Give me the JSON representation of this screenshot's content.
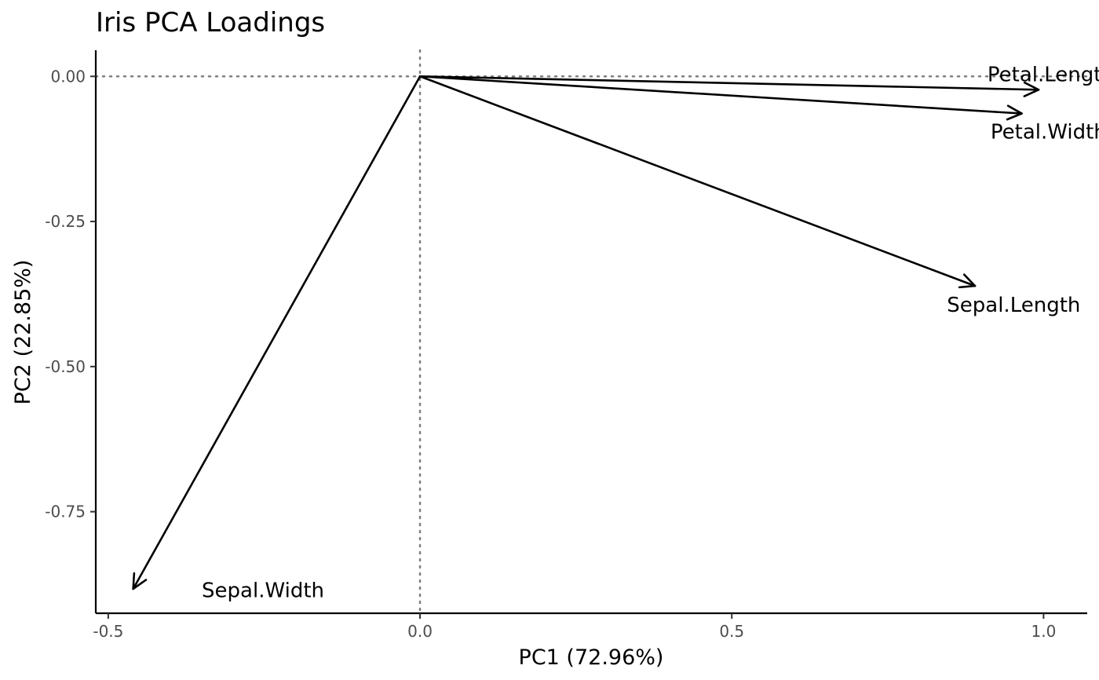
{
  "chart_data": {
    "type": "scatter",
    "subtype": "pca-loadings-biplot",
    "title": "Iris PCA Loadings",
    "xlabel": "PC1 (72.96%)",
    "ylabel": "PC2 (22.85%)",
    "xlim": [
      -0.52,
      1.07
    ],
    "ylim": [
      -0.925,
      0.045
    ],
    "x_ticks": [
      -0.5,
      0.0,
      0.5,
      1.0
    ],
    "x_tick_labels": [
      "-0.5",
      "0.0",
      "0.5",
      "1.0"
    ],
    "y_ticks": [
      0.0,
      -0.25,
      -0.5,
      -0.75
    ],
    "y_tick_labels": [
      "0.00",
      "-0.25",
      "-0.50",
      "-0.75"
    ],
    "reference_lines": {
      "x": 0,
      "y": 0
    },
    "grid": false,
    "series": [
      {
        "name": "Sepal.Length",
        "x": [
          0,
          0.89
        ],
        "y": [
          0,
          -0.361
        ]
      },
      {
        "name": "Sepal.Width",
        "x": [
          0,
          -0.46
        ],
        "y": [
          0,
          -0.883
        ]
      },
      {
        "name": "Petal.Length",
        "x": [
          0,
          0.992
        ],
        "y": [
          0,
          -0.023
        ]
      },
      {
        "name": "Petal.Width",
        "x": [
          0,
          0.965
        ],
        "y": [
          0,
          -0.064
        ]
      }
    ],
    "vector_labels": [
      {
        "text": "Petal.Length",
        "x": 0.91,
        "y": 0.004
      },
      {
        "text": "Petal.Width",
        "x": 0.915,
        "y": -0.095
      },
      {
        "text": "Sepal.Length",
        "x": 0.845,
        "y": -0.393
      },
      {
        "text": "Sepal.Width",
        "x": -0.35,
        "y": -0.885
      }
    ],
    "colors": {
      "vectors": "#000000",
      "reference_lines": "#7f7f7f",
      "tick_labels": "#4d4d4d"
    }
  }
}
